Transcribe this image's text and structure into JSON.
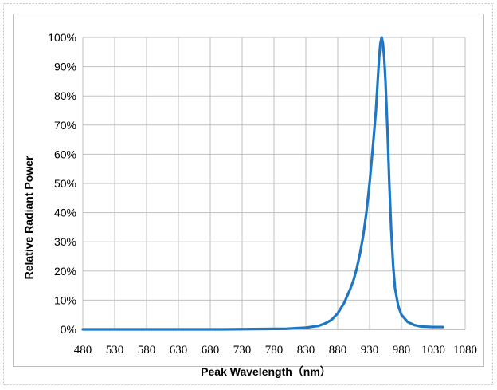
{
  "chart_data": {
    "type": "line",
    "title": "",
    "xlabel": "Peak Wavelength（nm）",
    "ylabel": "Relative Radiant Power",
    "xlim": [
      480,
      1080
    ],
    "ylim": [
      0,
      100
    ],
    "x_ticks": [
      "480",
      "530",
      "580",
      "630",
      "680",
      "730",
      "780",
      "830",
      "880",
      "930",
      "980",
      "1030",
      "1080"
    ],
    "y_ticks": [
      "0%",
      "10%",
      "20%",
      "30%",
      "40%",
      "50%",
      "60%",
      "70%",
      "80%",
      "90%",
      "100%"
    ],
    "grid": true,
    "legend": "none",
    "colors": {
      "line": "#1f77c4",
      "grid": "#c0c0c0",
      "frame": "#bfbfbf"
    },
    "series": [
      {
        "x": [
          480,
          700,
          800,
          830,
          850,
          860,
          870,
          880,
          890,
          900,
          905,
          910,
          915,
          920,
          925,
          930,
          935,
          940,
          943,
          945,
          947,
          949,
          951,
          953,
          955,
          958,
          961,
          964,
          967,
          970,
          975,
          980,
          990,
          1000,
          1010,
          1030,
          1045
        ],
        "y": [
          0,
          0,
          0.2,
          0.6,
          1.2,
          2,
          3.2,
          5.5,
          9,
          14,
          17,
          21,
          26,
          32,
          40,
          50,
          62,
          75,
          86,
          93,
          98,
          100,
          98,
          93,
          85,
          69,
          50,
          34,
          22,
          14,
          8,
          5,
          2.5,
          1.5,
          1,
          0.8,
          0.8
        ]
      }
    ]
  }
}
